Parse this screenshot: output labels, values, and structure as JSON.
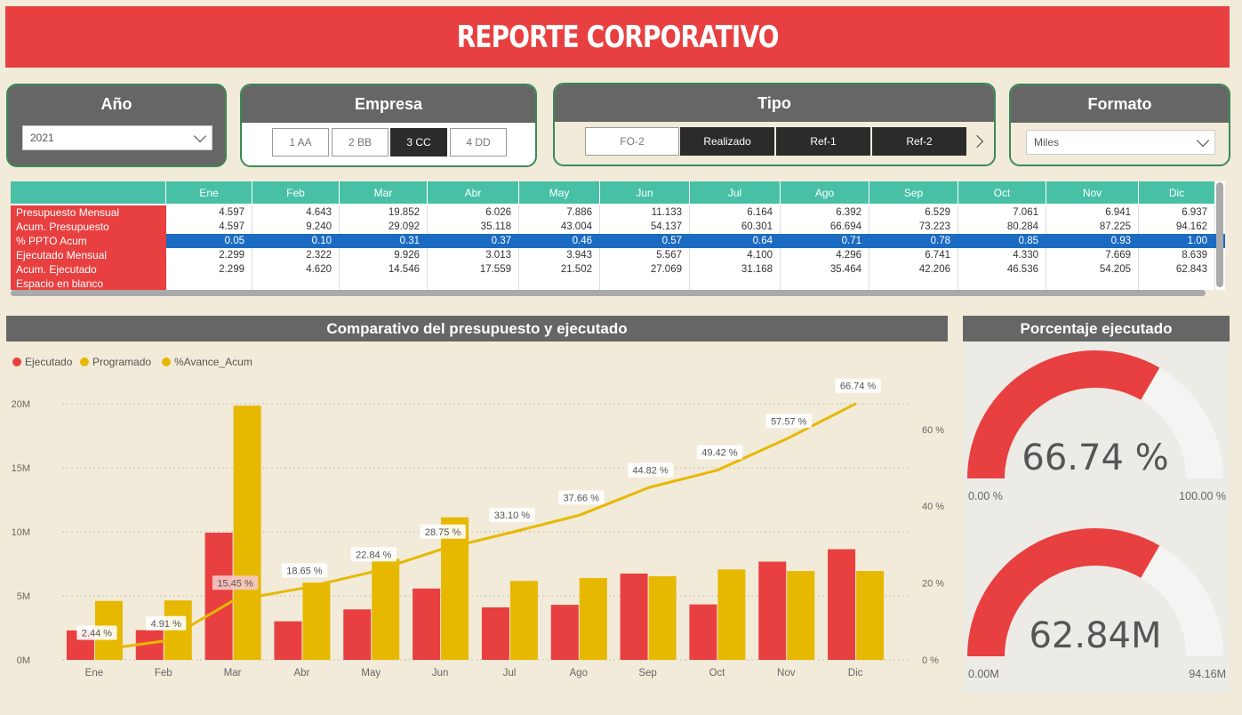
{
  "title": "REPORTE CORPORATIVO",
  "colors": {
    "accent": "#e84040",
    "bar_red": "#e84040",
    "bar_yellow": "#e6b800",
    "teal": "#47c0a6",
    "header_gray": "#666666",
    "row_blue": "#1c6bc2"
  },
  "filters": {
    "anio": {
      "label": "Año",
      "value": "2021"
    },
    "empresa": {
      "label": "Empresa",
      "options": [
        "1 AA",
        "2 BB",
        "3 CC",
        "4 DD"
      ],
      "selected": "3 CC"
    },
    "tipo": {
      "label": "Tipo",
      "options": [
        "FO-2",
        "Realizado",
        "Ref-1",
        "Ref-2"
      ],
      "selected": [
        "Realizado",
        "Ref-1",
        "Ref-2"
      ]
    },
    "formato": {
      "label": "Formato",
      "value": "Miles"
    }
  },
  "matrix": {
    "months": [
      "Ene",
      "Feb",
      "Mar",
      "Abr",
      "May",
      "Jun",
      "Jul",
      "Ago",
      "Sep",
      "Oct",
      "Nov",
      "Dic"
    ],
    "rows": [
      {
        "label": "Presupuesto Mensual",
        "values": [
          "4.597",
          "4.643",
          "19.852",
          "6.026",
          "7.886",
          "11.133",
          "6.164",
          "6.392",
          "6.529",
          "7.061",
          "6.941",
          "6.937"
        ]
      },
      {
        "label": "Acum. Presupuesto",
        "values": [
          "4.597",
          "9.240",
          "29.092",
          "35.118",
          "43.004",
          "54.137",
          "60.301",
          "66.694",
          "73.223",
          "80.284",
          "87.225",
          "94.162"
        ]
      },
      {
        "label": "% PPTO Acum",
        "values": [
          "0.05",
          "0.10",
          "0.31",
          "0.37",
          "0.46",
          "0.57",
          "0.64",
          "0.71",
          "0.78",
          "0.85",
          "0.93",
          "1.00"
        ]
      },
      {
        "label": "Ejecutado Mensual",
        "values": [
          "2.299",
          "2.322",
          "9.926",
          "3.013",
          "3.943",
          "5.567",
          "4.100",
          "4.296",
          "6.741",
          "4.330",
          "7.669",
          "8.639"
        ]
      },
      {
        "label": "Acum. Ejecutado",
        "values": [
          "2.299",
          "4.620",
          "14.546",
          "17.559",
          "21.502",
          "27.069",
          "31.168",
          "35.464",
          "42.206",
          "46.536",
          "54.205",
          "62.843"
        ]
      },
      {
        "label": "Espacio en blanco",
        "values": [
          "",
          "",
          "",
          "",
          "",
          "",
          "",
          "",
          "",
          "",
          "",
          ""
        ]
      }
    ]
  },
  "combo_chart": {
    "header": "Comparativo del presupuesto y ejecutado",
    "legend": [
      "Ejecutado",
      "Programado",
      "%Avance_Acum"
    ]
  },
  "chart_data": {
    "type": "bar",
    "categories": [
      "Ene",
      "Feb",
      "Mar",
      "Abr",
      "May",
      "Jun",
      "Jul",
      "Ago",
      "Sep",
      "Oct",
      "Nov",
      "Dic"
    ],
    "series": [
      {
        "name": "Ejecutado",
        "values": [
          2.3,
          2.32,
          9.93,
          3.01,
          3.94,
          5.57,
          4.1,
          4.3,
          6.74,
          4.33,
          7.67,
          8.64
        ]
      },
      {
        "name": "Programado",
        "values": [
          4.6,
          4.64,
          19.85,
          6.03,
          7.89,
          11.13,
          6.16,
          6.39,
          6.53,
          7.06,
          6.94,
          6.94
        ]
      },
      {
        "name": "%Avance_Acum",
        "values": [
          2.44,
          4.91,
          15.45,
          18.65,
          22.84,
          28.75,
          33.1,
          37.66,
          44.82,
          49.42,
          57.57,
          66.74
        ]
      }
    ],
    "line_labels": [
      "2.44 %",
      "4.91 %",
      "15.45 %",
      "18.65 %",
      "22.84 %",
      "28.75 %",
      "33.10 %",
      "37.66 %",
      "44.82 %",
      "49.42 %",
      "57.57 %",
      "66.74 %"
    ],
    "y_left_ticks": [
      "0M",
      "5M",
      "10M",
      "15M",
      "20M"
    ],
    "y_right_ticks": [
      "0 %",
      "20 %",
      "40 %",
      "60 %"
    ],
    "ylim_left": [
      0,
      20
    ],
    "ylim_right": [
      0,
      66.67
    ]
  },
  "gauges": {
    "header": "Porcentaje ejecutado",
    "pct": {
      "value": 66.74,
      "max": 100,
      "label": "66.74 %",
      "min_label": "0.00 %",
      "max_label": "100.00 %"
    },
    "amount": {
      "value": 62.84,
      "max": 94.16,
      "label": "62.84M",
      "min_label": "0.00M",
      "max_label": "94.16M"
    }
  }
}
